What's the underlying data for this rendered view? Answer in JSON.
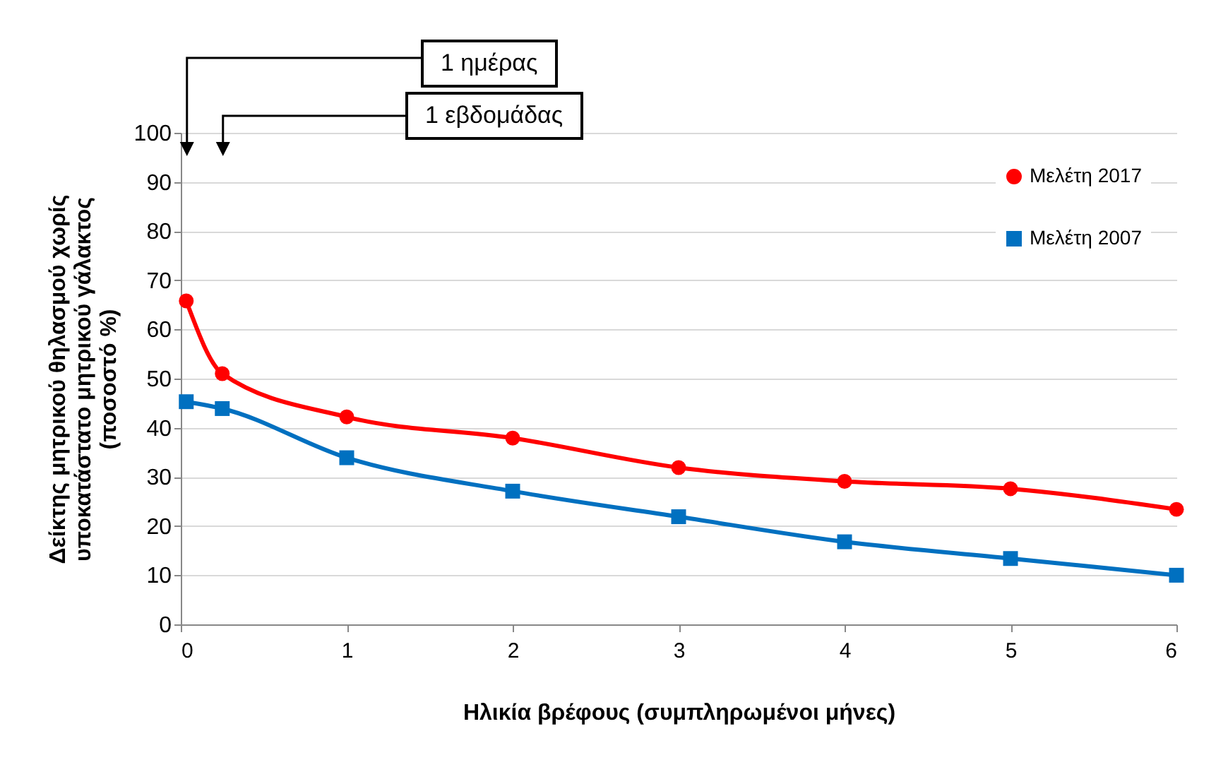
{
  "chart_data": {
    "type": "line",
    "xlabel": "Ηλικία  βρέφους (συμπληρωμένοι μήνες)",
    "ylabel": "Δείκτης μητρικού θηλασμού χωρίς\nυποκατάστατο μητρικού γάλακτος\n(ποσοστό %)",
    "x": [
      0.033,
      0.25,
      1,
      2,
      3,
      4,
      5,
      6
    ],
    "series": [
      {
        "name": "Μελέτη 2017",
        "color": "#ff0000",
        "marker": "circle",
        "values": [
          65.8,
          51,
          42.2,
          37.9,
          31.9,
          29.1,
          27.6,
          23.4
        ]
      },
      {
        "name": "Μελέτη 2007",
        "color": "#0070c0",
        "marker": "square",
        "values": [
          45.3,
          43.9,
          33.9,
          27.1,
          21.9,
          16.8,
          13.4,
          10
        ]
      }
    ],
    "annotations": [
      "1 ημέρας",
      "1 εβδομάδας"
    ],
    "xlim": [
      0,
      6
    ],
    "xticks": [
      0,
      1,
      2,
      3,
      4,
      5,
      6
    ],
    "ylim": [
      0,
      100
    ],
    "yticks": [
      0,
      10,
      20,
      30,
      40,
      50,
      60,
      70,
      80,
      90,
      100
    ],
    "grid": "y",
    "legend": "top right",
    "line_style": "solid"
  }
}
